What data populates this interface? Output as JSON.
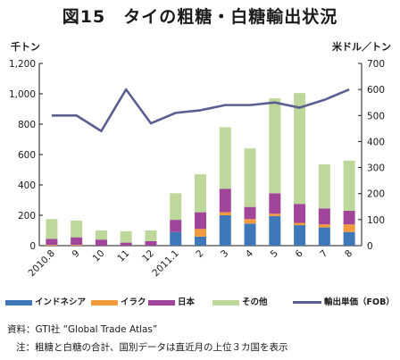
{
  "title": "図15　タイの粗糖・白糖輸出状況",
  "chart_data": {
    "type": "bar",
    "stacked": true,
    "categories": [
      "2010.8",
      "9",
      "10",
      "11",
      "12",
      "2011.1",
      "2",
      "3",
      "4",
      "5",
      "6",
      "7",
      "8"
    ],
    "ylabel_left": "千トン",
    "ylabel_right": "米ドル／トン",
    "ylim_left": [
      0,
      1200
    ],
    "ylim_right": [
      0,
      700
    ],
    "yticks_left": [
      "0",
      "200",
      "400",
      "600",
      "800",
      "1,000",
      "1,200"
    ],
    "yticks_right": [
      "0",
      "100",
      "200",
      "300",
      "400",
      "500",
      "600",
      "700"
    ],
    "grid": false,
    "legend": "bottom",
    "series": [
      {
        "name": "インドネシア",
        "type": "bar",
        "axis": "left",
        "color": "#3e78b8",
        "values": [
          0,
          0,
          0,
          0,
          0,
          90,
          60,
          200,
          145,
          195,
          135,
          120,
          90
        ]
      },
      {
        "name": "イラク",
        "type": "bar",
        "axis": "left",
        "color": "#f39a3c",
        "values": [
          5,
          5,
          0,
          0,
          0,
          0,
          50,
          20,
          30,
          15,
          15,
          20,
          50
        ]
      },
      {
        "name": "日本",
        "type": "bar",
        "axis": "left",
        "color": "#a0459a",
        "values": [
          40,
          50,
          40,
          20,
          30,
          80,
          110,
          155,
          80,
          135,
          125,
          105,
          90
        ]
      },
      {
        "name": "その他",
        "type": "bar",
        "axis": "left",
        "color": "#bdd89a",
        "values": [
          130,
          110,
          60,
          75,
          70,
          175,
          250,
          405,
          385,
          625,
          730,
          290,
          330
        ]
      },
      {
        "name": "輸出単価（FOB）",
        "type": "line",
        "axis": "right",
        "color": "#5a5f91",
        "values": [
          500,
          500,
          440,
          600,
          470,
          510,
          520,
          540,
          540,
          550,
          530,
          560,
          600
        ]
      }
    ]
  },
  "notes": {
    "source": "資料：GTI社 “Global Trade Atlas”",
    "note": "注：粗糖と白糖の合計、国別データは直近月の上位３カ国を表示"
  }
}
